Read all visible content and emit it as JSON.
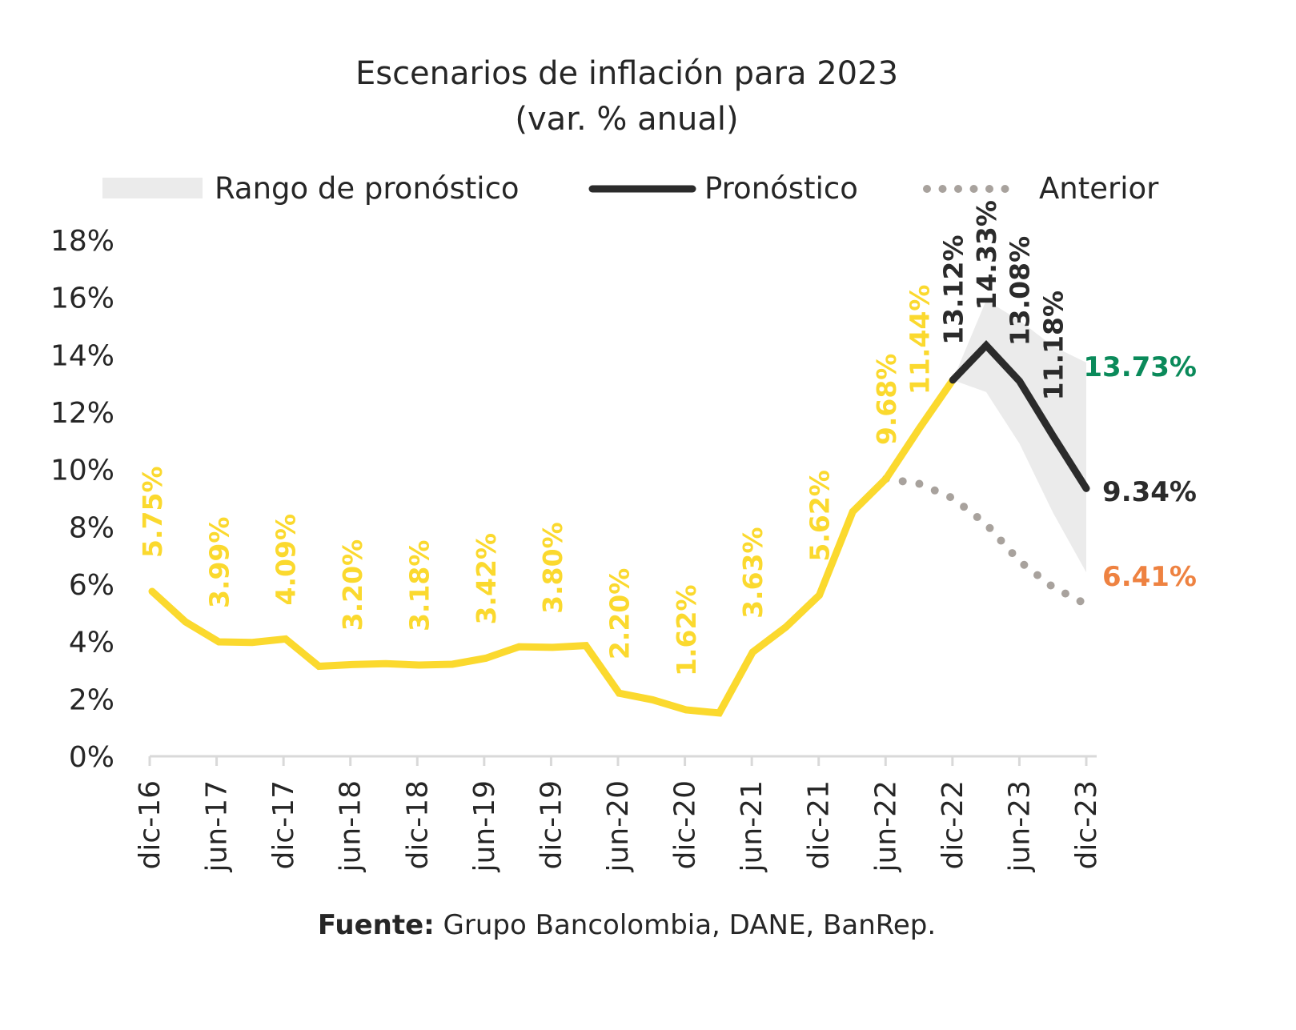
{
  "chart_data": {
    "type": "line",
    "title": "Escenarios de inflación para 2023",
    "subtitle": "(var. % anual)",
    "source_label": "Fuente:",
    "source_text": " Grupo Bancolombia, DANE, BanRep.",
    "legend": {
      "range": "Rango de pronóstico",
      "forecast": "Pronóstico",
      "previous": "Anterior",
      "placement": "top"
    },
    "ylim": [
      0,
      18
    ],
    "yticks": [
      "0%",
      "2%",
      "4%",
      "6%",
      "8%",
      "10%",
      "12%",
      "14%",
      "16%",
      "18%"
    ],
    "xticks": [
      "dic-16",
      "jun-17",
      "dic-17",
      "jun-18",
      "dic-18",
      "jun-19",
      "dic-19",
      "jun-20",
      "dic-20",
      "jun-21",
      "dic-21",
      "jun-22",
      "dic-22",
      "jun-23",
      "dic-23"
    ],
    "grid": false,
    "colors": {
      "observed": "#FBD92E",
      "forecast": "#2B2B2B",
      "range": "#EBEBEB",
      "previous": "#A8A29D",
      "upper": "#0A8A5A",
      "lower": "#EE8241",
      "axis": "#D9D9D9"
    },
    "observed": {
      "x_quarters": [
        0,
        1,
        2,
        3,
        4,
        5,
        6,
        7,
        8,
        9,
        10,
        11,
        12,
        13,
        14,
        15,
        16,
        17,
        18,
        19,
        20,
        21,
        22,
        23,
        24
      ],
      "values": [
        5.75,
        4.69,
        3.99,
        3.97,
        4.09,
        3.14,
        3.2,
        3.23,
        3.18,
        3.21,
        3.42,
        3.82,
        3.8,
        3.86,
        2.2,
        1.97,
        1.62,
        1.51,
        3.63,
        4.51,
        5.62,
        8.53,
        9.68,
        11.44,
        13.12
      ],
      "labels": [
        {
          "i": 0,
          "text": "5.75%"
        },
        {
          "i": 2,
          "text": "3.99%"
        },
        {
          "i": 4,
          "text": "4.09%"
        },
        {
          "i": 6,
          "text": "3.20%"
        },
        {
          "i": 8,
          "text": "3.18%"
        },
        {
          "i": 10,
          "text": "3.42%"
        },
        {
          "i": 12,
          "text": "3.80%"
        },
        {
          "i": 14,
          "text": "2.20%"
        },
        {
          "i": 16,
          "text": "1.62%"
        },
        {
          "i": 18,
          "text": "3.63%"
        },
        {
          "i": 20,
          "text": "5.62%"
        },
        {
          "i": 22,
          "text": "9.68%"
        },
        {
          "i": 23,
          "text": "11.44%"
        }
      ]
    },
    "forecast": {
      "x_quarters": [
        24,
        25,
        26,
        27,
        28
      ],
      "values": [
        13.12,
        14.33,
        13.08,
        11.18,
        9.34
      ],
      "labels": [
        {
          "i": 0,
          "text": "13.12%"
        },
        {
          "i": 1,
          "text": "14.33%"
        },
        {
          "i": 2,
          "text": "13.08%"
        },
        {
          "i": 3,
          "text": "11.18%"
        }
      ],
      "end_label": "9.34%"
    },
    "range": {
      "x_quarters": [
        24,
        25,
        26,
        27,
        28
      ],
      "upper": [
        13.12,
        15.9,
        15.2,
        14.3,
        13.73
      ],
      "lower": [
        13.12,
        12.7,
        10.9,
        8.5,
        6.41
      ],
      "upper_label": "13.73%",
      "lower_label": "6.41%"
    },
    "previous": {
      "x_quarters": [
        22,
        23,
        24,
        25,
        26,
        27,
        28
      ],
      "values": [
        9.68,
        9.5,
        9.0,
        8.1,
        6.8,
        5.9,
        5.3
      ]
    }
  }
}
